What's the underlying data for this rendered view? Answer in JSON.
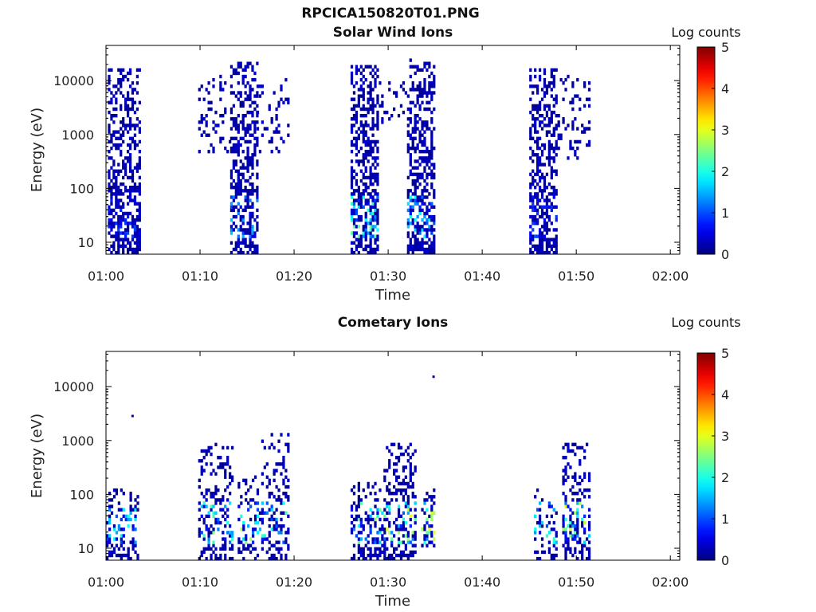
{
  "figure": {
    "title": "RPCICA150820T01.PNG"
  },
  "chart_data": [
    {
      "type": "heatmap",
      "title": "Solar Wind Ions",
      "xlabel": "Time",
      "ylabel": "Energy (eV)",
      "x_ticks": [
        "01:00",
        "01:10",
        "01:20",
        "01:30",
        "01:40",
        "01:50",
        "02:00"
      ],
      "xlim": [
        "01:00",
        "02:00"
      ],
      "y_scale": "log",
      "y_ticks": [
        10,
        100,
        1000,
        10000
      ],
      "ylim": [
        6,
        45000
      ],
      "colorbar": {
        "label": "Log counts",
        "ticks": [
          0,
          1,
          2,
          3,
          4,
          5
        ],
        "range": [
          0,
          5
        ],
        "colormap": "jet"
      },
      "bursts": [
        {
          "t_start_min": 0.2,
          "t_end_min": 3.5,
          "e_min_ev": 6,
          "e_max_ev": 16000,
          "density": 0.55,
          "peak_log_counts": 1.0
        },
        {
          "t_start_min": 9.8,
          "t_end_min": 13.2,
          "e_min_ev": 400,
          "e_max_ev": 12000,
          "density": 0.2,
          "peak_log_counts": 0.6
        },
        {
          "t_start_min": 13.2,
          "t_end_min": 16.0,
          "e_min_ev": 6,
          "e_max_ev": 20000,
          "density": 0.5,
          "peak_log_counts": 1.6
        },
        {
          "t_start_min": 16.0,
          "t_end_min": 19.5,
          "e_min_ev": 400,
          "e_max_ev": 12000,
          "density": 0.25,
          "peak_log_counts": 0.6
        },
        {
          "t_start_min": 26.0,
          "t_end_min": 29.0,
          "e_min_ev": 6,
          "e_max_ev": 18000,
          "density": 0.55,
          "peak_log_counts": 2.5
        },
        {
          "t_start_min": 29.0,
          "t_end_min": 32.0,
          "e_min_ev": 1500,
          "e_max_ev": 18000,
          "density": 0.2,
          "peak_log_counts": 0.6
        },
        {
          "t_start_min": 32.0,
          "t_end_min": 35.0,
          "e_min_ev": 6,
          "e_max_ev": 25000,
          "density": 0.55,
          "peak_log_counts": 2.0
        },
        {
          "t_start_min": 45.0,
          "t_end_min": 48.0,
          "e_min_ev": 6,
          "e_max_ev": 16000,
          "density": 0.55,
          "peak_log_counts": 1.0
        },
        {
          "t_start_min": 48.0,
          "t_end_min": 51.5,
          "e_min_ev": 300,
          "e_max_ev": 12000,
          "density": 0.2,
          "peak_log_counts": 0.6
        }
      ]
    },
    {
      "type": "heatmap",
      "title": "Cometary Ions",
      "xlabel": "Time",
      "ylabel": "Energy (eV)",
      "x_ticks": [
        "01:00",
        "01:10",
        "01:20",
        "01:30",
        "01:40",
        "01:50",
        "02:00"
      ],
      "xlim": [
        "01:00",
        "02:00"
      ],
      "y_scale": "log",
      "y_ticks": [
        10,
        100,
        1000,
        10000
      ],
      "ylim": [
        6,
        45000
      ],
      "colorbar": {
        "label": "Log counts",
        "ticks": [
          0,
          1,
          2,
          3,
          4,
          5
        ],
        "range": [
          0,
          5
        ],
        "colormap": "jet"
      },
      "bursts": [
        {
          "t_start_min": 0.0,
          "t_end_min": 3.5,
          "e_min_ev": 6,
          "e_max_ev": 120,
          "density": 0.4,
          "peak_log_counts": 2.0
        },
        {
          "t_start_min": 9.8,
          "t_end_min": 13.5,
          "e_min_ev": 6,
          "e_max_ev": 900,
          "density": 0.35,
          "peak_log_counts": 2.6
        },
        {
          "t_start_min": 14.0,
          "t_end_min": 16.5,
          "e_min_ev": 6,
          "e_max_ev": 200,
          "density": 0.35,
          "peak_log_counts": 2.8
        },
        {
          "t_start_min": 16.5,
          "t_end_min": 19.5,
          "e_min_ev": 6,
          "e_max_ev": 1200,
          "density": 0.35,
          "peak_log_counts": 2.4
        },
        {
          "t_start_min": 26.0,
          "t_end_min": 29.5,
          "e_min_ev": 6,
          "e_max_ev": 150,
          "density": 0.45,
          "peak_log_counts": 2.8
        },
        {
          "t_start_min": 29.5,
          "t_end_min": 33.0,
          "e_min_ev": 6,
          "e_max_ev": 800,
          "density": 0.45,
          "peak_log_counts": 3.0
        },
        {
          "t_start_min": 33.5,
          "t_end_min": 35.0,
          "e_min_ev": 10,
          "e_max_ev": 120,
          "density": 0.5,
          "peak_log_counts": 3.2
        },
        {
          "t_start_min": 45.5,
          "t_end_min": 48.0,
          "e_min_ev": 6,
          "e_max_ev": 120,
          "density": 0.35,
          "peak_log_counts": 2.4
        },
        {
          "t_start_min": 48.5,
          "t_end_min": 51.5,
          "e_min_ev": 6,
          "e_max_ev": 900,
          "density": 0.45,
          "peak_log_counts": 3.0
        }
      ],
      "points": [
        {
          "t_min": 2.7,
          "e_ev": 2800,
          "log_counts": 0.3
        },
        {
          "t_min": 34.7,
          "e_ev": 15000,
          "log_counts": 0.3
        }
      ]
    }
  ]
}
